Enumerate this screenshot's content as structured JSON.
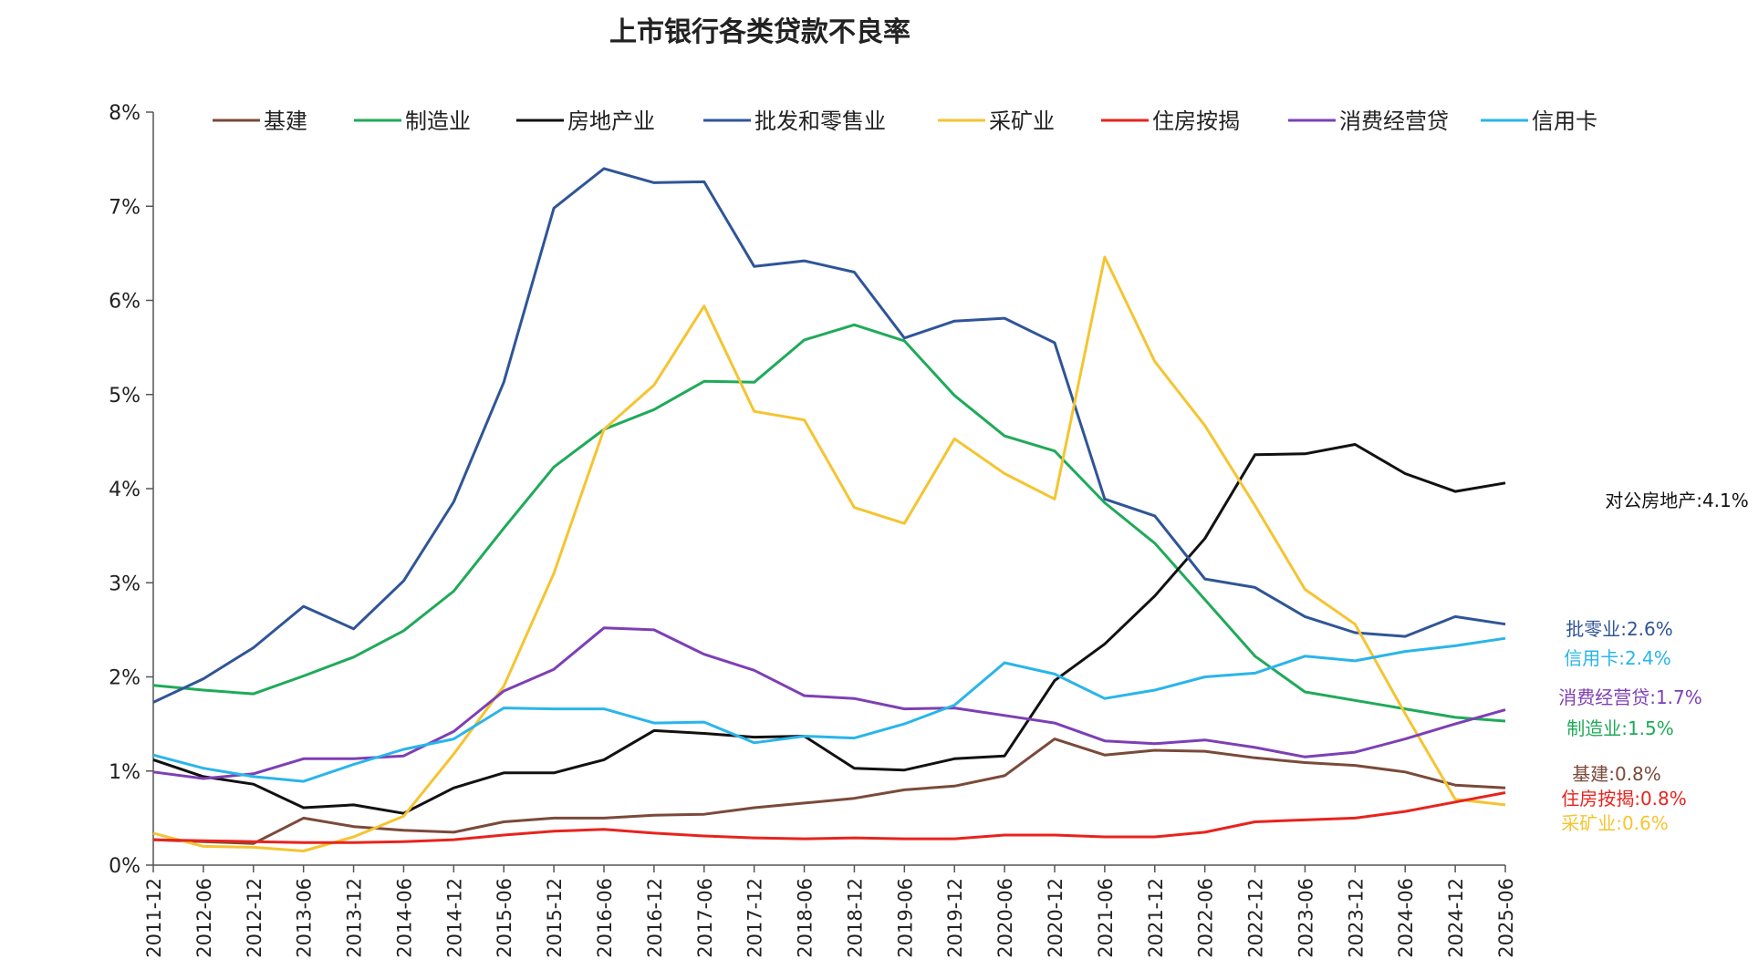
{
  "chart_data": {
    "type": "line",
    "title": "上市银行各类贷款不良率",
    "xlabel": "",
    "ylabel": "",
    "ylim": [
      0,
      8
    ],
    "y_ticks": [
      "0%",
      "1%",
      "2%",
      "3%",
      "4%",
      "5%",
      "6%",
      "7%",
      "8%"
    ],
    "legend_position": "top",
    "grid": false,
    "categories": [
      "2011-12",
      "2012-06",
      "2012-12",
      "2013-06",
      "2013-12",
      "2014-06",
      "2014-12",
      "2015-06",
      "2015-12",
      "2016-06",
      "2016-12",
      "2017-06",
      "2017-12",
      "2018-06",
      "2018-12",
      "2019-06",
      "2019-12",
      "2020-06",
      "2020-12",
      "2021-06",
      "2021-12",
      "2022-06",
      "2022-12",
      "2023-06",
      "2023-12",
      "2024-06",
      "2024-12",
      "2025-06"
    ],
    "series": [
      {
        "name": "基建",
        "color": "#7a4a3a",
        "end_label": "基建:0.8%",
        "values": [
          0.27,
          0.25,
          0.23,
          0.5,
          0.41,
          0.37,
          0.35,
          0.46,
          0.5,
          0.5,
          0.53,
          0.54,
          0.61,
          0.66,
          0.71,
          0.8,
          0.84,
          0.95,
          1.34,
          1.17,
          1.22,
          1.21,
          1.14,
          1.09,
          1.06,
          0.99,
          0.85,
          0.82
        ]
      },
      {
        "name": "制造业",
        "color": "#1faa59",
        "end_label": "制造业:1.5%",
        "values": [
          1.91,
          1.86,
          1.82,
          2.01,
          2.21,
          2.49,
          2.91,
          3.58,
          4.23,
          4.63,
          4.84,
          5.14,
          5.13,
          5.58,
          5.74,
          5.57,
          4.99,
          4.56,
          4.4,
          3.85,
          3.42,
          2.82,
          2.22,
          1.84,
          1.75,
          1.66,
          1.57,
          1.53
        ]
      },
      {
        "name": "房地产业",
        "color": "#111111",
        "end_label": "对公房地产:4.1%",
        "values": [
          1.12,
          0.94,
          0.86,
          0.61,
          0.64,
          0.55,
          0.82,
          0.98,
          0.98,
          1.12,
          1.43,
          1.4,
          1.36,
          1.37,
          1.03,
          1.01,
          1.13,
          1.16,
          1.96,
          2.35,
          2.86,
          3.47,
          4.36,
          4.37,
          4.47,
          4.16,
          3.97,
          4.06
        ]
      },
      {
        "name": "批发和零售业",
        "color": "#2f5597",
        "end_label": "批零业:2.6%",
        "values": [
          1.73,
          1.98,
          2.31,
          2.75,
          2.51,
          3.02,
          3.86,
          5.13,
          6.98,
          7.4,
          7.25,
          7.26,
          6.36,
          6.42,
          6.3,
          5.6,
          5.78,
          5.81,
          5.55,
          3.89,
          3.71,
          3.04,
          2.95,
          2.64,
          2.47,
          2.43,
          2.64,
          2.56
        ]
      },
      {
        "name": "采矿业",
        "color": "#f5c431",
        "end_label": "采矿业:0.6%",
        "values": [
          0.34,
          0.2,
          0.19,
          0.15,
          0.3,
          0.52,
          1.18,
          1.9,
          3.1,
          4.63,
          5.1,
          5.94,
          4.82,
          4.73,
          3.8,
          3.63,
          4.53,
          4.16,
          3.89,
          6.46,
          5.35,
          4.67,
          3.82,
          2.93,
          2.56,
          1.61,
          0.7,
          0.64
        ]
      },
      {
        "name": "住房按揭",
        "color": "#e8231d",
        "end_label": "住房按揭:0.8%",
        "values": [
          0.27,
          0.26,
          0.25,
          0.24,
          0.24,
          0.25,
          0.27,
          0.32,
          0.36,
          0.38,
          0.34,
          0.31,
          0.29,
          0.28,
          0.29,
          0.28,
          0.28,
          0.32,
          0.32,
          0.3,
          0.3,
          0.35,
          0.46,
          0.48,
          0.5,
          0.57,
          0.67,
          0.77
        ]
      },
      {
        "name": "消费经营贷",
        "color": "#7d3fb5",
        "end_label": "消费经营贷:1.7%",
        "values": [
          0.99,
          0.92,
          0.97,
          1.13,
          1.13,
          1.16,
          1.42,
          1.85,
          2.08,
          2.52,
          2.5,
          2.24,
          2.07,
          1.8,
          1.77,
          1.66,
          1.67,
          1.59,
          1.51,
          1.32,
          1.29,
          1.33,
          1.25,
          1.15,
          1.2,
          1.34,
          1.5,
          1.65
        ]
      },
      {
        "name": "信用卡",
        "color": "#29b5ea",
        "end_label": "信用卡:2.4%",
        "values": [
          1.17,
          1.03,
          0.94,
          0.89,
          1.07,
          1.23,
          1.34,
          1.67,
          1.66,
          1.66,
          1.51,
          1.52,
          1.3,
          1.37,
          1.35,
          1.5,
          1.7,
          2.15,
          2.03,
          1.77,
          1.86,
          2.0,
          2.04,
          2.22,
          2.17,
          2.27,
          2.33,
          2.41
        ]
      }
    ]
  }
}
